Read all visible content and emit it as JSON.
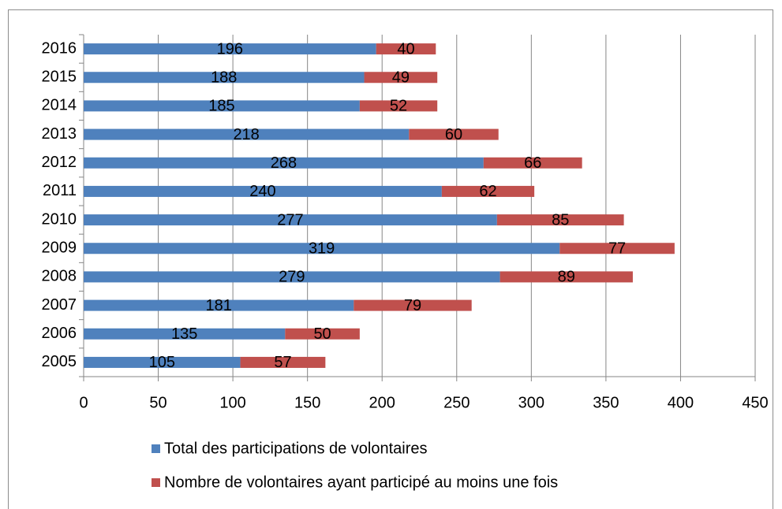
{
  "chart_data": {
    "type": "bar",
    "orientation": "horizontal",
    "stacked": true,
    "categories": [
      "2005",
      "2006",
      "2007",
      "2008",
      "2009",
      "2010",
      "2011",
      "2012",
      "2013",
      "2014",
      "2015",
      "2016"
    ],
    "series": [
      {
        "name": "Total des participations de volontaires",
        "color": "#4f81bd",
        "values": [
          105,
          135,
          181,
          279,
          319,
          277,
          240,
          268,
          218,
          185,
          188,
          196
        ]
      },
      {
        "name": "Nombre de volontaires ayant participé au moins une fois",
        "color": "#c0504d",
        "values": [
          57,
          50,
          79,
          89,
          77,
          85,
          62,
          66,
          60,
          52,
          49,
          40
        ]
      }
    ],
    "xlim": [
      0,
      450
    ],
    "xticks": [
      0,
      50,
      100,
      150,
      200,
      250,
      300,
      350,
      400,
      450
    ],
    "grid": true,
    "legend": "bottom"
  }
}
